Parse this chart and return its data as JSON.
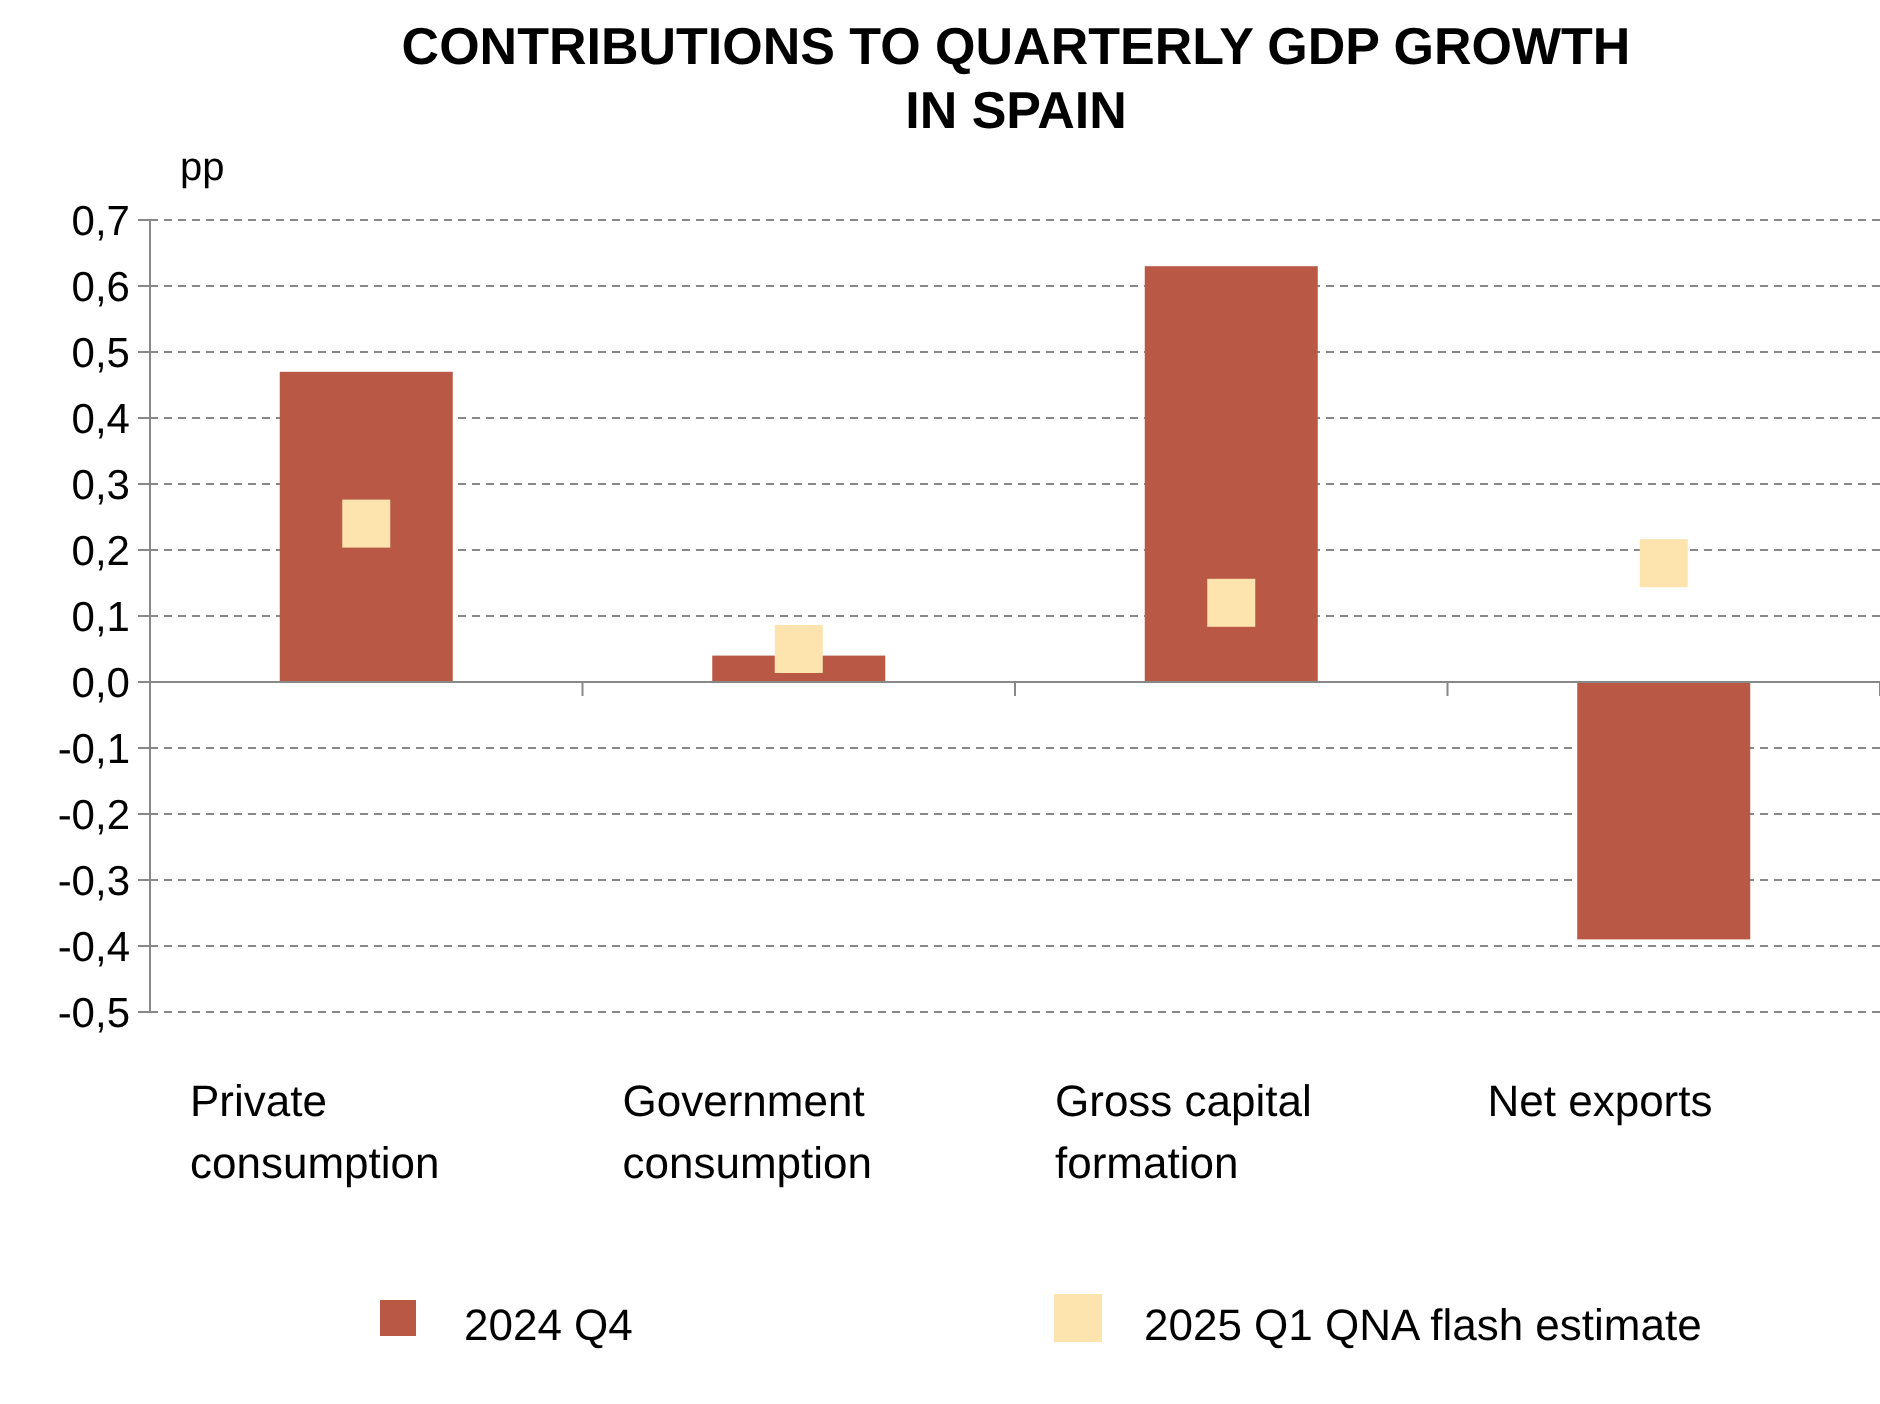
{
  "chart_data": {
    "type": "bar",
    "title": "CONTRIBUTIONS TO QUARTERLY GDP GROWTH IN SPAIN",
    "ylabel": "pp",
    "categories": [
      "Private consumption",
      "Government consumption",
      "Gross capital formation",
      "Net exports"
    ],
    "series": [
      {
        "name": "2024 Q4",
        "type": "bar",
        "color": "#b95845",
        "values": [
          0.47,
          0.04,
          0.63,
          -0.39
        ]
      },
      {
        "name": "2025 Q1 QNA flash estimate",
        "type": "scatter",
        "marker": "square",
        "color": "#fde3ae",
        "values": [
          0.24,
          0.05,
          0.12,
          0.18
        ]
      }
    ],
    "ylim": [
      -0.5,
      0.7
    ],
    "yticks": [
      {
        "value": -0.5,
        "label": "-0,5"
      },
      {
        "value": -0.4,
        "label": "-0,4"
      },
      {
        "value": -0.3,
        "label": "-0,3"
      },
      {
        "value": -0.2,
        "label": "-0,2"
      },
      {
        "value": -0.1,
        "label": "-0,1"
      },
      {
        "value": 0,
        "label": "0,0"
      },
      {
        "value": 0.1,
        "label": "0,1"
      },
      {
        "value": 0.2,
        "label": "0,2"
      },
      {
        "value": 0.3,
        "label": "0,3"
      },
      {
        "value": 0.4,
        "label": "0,4"
      },
      {
        "value": 0.5,
        "label": "0,5"
      },
      {
        "value": 0.6,
        "label": "0,6"
      },
      {
        "value": 0.7,
        "label": "0,7"
      }
    ],
    "grid": "y",
    "legend": "bottom"
  }
}
